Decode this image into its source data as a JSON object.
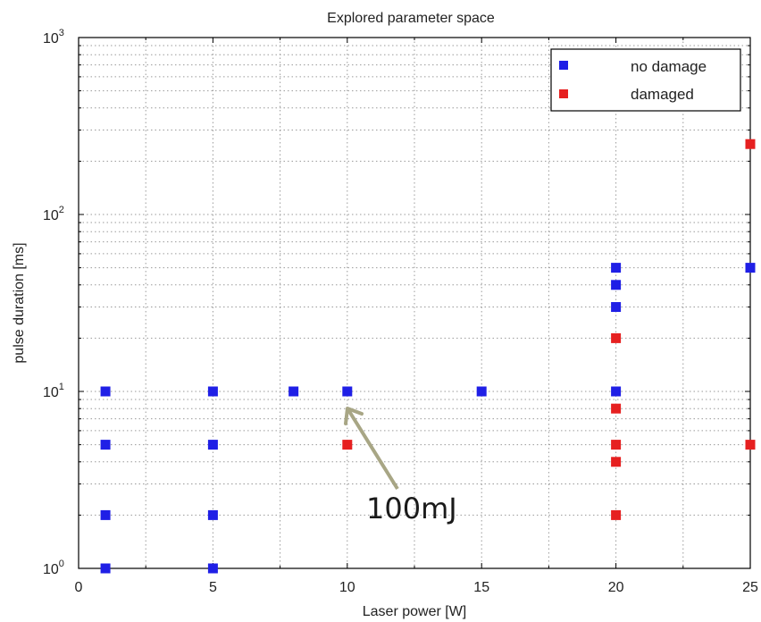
{
  "chart_data": {
    "type": "scatter",
    "title": "Explored parameter space",
    "xlabel": "Laser power [W]",
    "ylabel": "pulse duration [ms]",
    "xlim": [
      0,
      25
    ],
    "ylim": [
      1,
      1000
    ],
    "yscale": "log",
    "grid": true,
    "legend_position": "top-right",
    "xticks": [
      "0",
      "5",
      "10",
      "15",
      "20",
      "25"
    ],
    "yticks": [
      {
        "base": "10",
        "exp": "0"
      },
      {
        "base": "10",
        "exp": "1"
      },
      {
        "base": "10",
        "exp": "2"
      },
      {
        "base": "10",
        "exp": "3"
      }
    ],
    "series": [
      {
        "name": "no damage",
        "color": "#1f1fe6",
        "points": [
          [
            1,
            1
          ],
          [
            1,
            2
          ],
          [
            1,
            5
          ],
          [
            1,
            10
          ],
          [
            5,
            1
          ],
          [
            5,
            2
          ],
          [
            5,
            5
          ],
          [
            5,
            10
          ],
          [
            8,
            10
          ],
          [
            10,
            10
          ],
          [
            15,
            10
          ],
          [
            20,
            10
          ],
          [
            20,
            30
          ],
          [
            20,
            40
          ],
          [
            20,
            50
          ],
          [
            25,
            50
          ]
        ]
      },
      {
        "name": "damaged",
        "color": "#e62020",
        "points": [
          [
            10,
            5
          ],
          [
            20,
            2
          ],
          [
            20,
            4
          ],
          [
            20,
            5
          ],
          [
            20,
            8
          ],
          [
            20,
            20
          ],
          [
            25,
            5
          ],
          [
            25,
            250
          ]
        ]
      }
    ],
    "annotation": {
      "text": "100mJ",
      "arrow_color": "#a8a685"
    }
  }
}
